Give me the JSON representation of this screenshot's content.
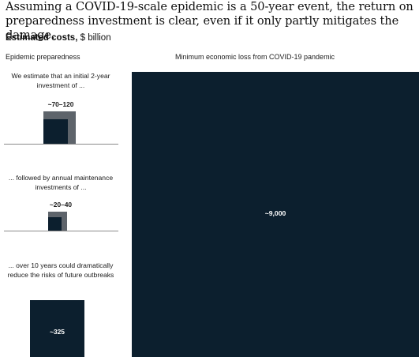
{
  "title": "Assuming a COVID-19-scale epidemic is a 50-year event, the return on preparedness investment is clear, even if it only partly mitigates the damage.",
  "subtitle": {
    "bold": "Estimated costs,",
    "light": " $ billion"
  },
  "panels": {
    "left_heading": "Epidemic preparedness",
    "right_heading": "Minimum economic loss from COVID-19 pandemic"
  },
  "steps": [
    {
      "text": "We estimate that an initial 2-year investment of ...",
      "value_label": "~70–120"
    },
    {
      "text": "... followed by annual maintenance investments of ...",
      "value_label": "~20–40"
    },
    {
      "text": "... over 10 years could dramatically reduce the risks of future outbreaks",
      "value_label": "~325"
    }
  ],
  "big": {
    "value_label": "~9,000"
  },
  "colors": {
    "navy": "#0c1f2e",
    "gray": "#5e646b",
    "rule": "#8a8a8a"
  },
  "chart_data": {
    "type": "proportional-area-squares",
    "unit": "$ billion",
    "items": [
      {
        "label": "Initial 2-year investment",
        "low": 70,
        "high": 120,
        "display": "~70–120"
      },
      {
        "label": "Annual maintenance investments",
        "low": 20,
        "high": 40,
        "display": "~20–40"
      },
      {
        "label": "Total over 10 years",
        "value": 325,
        "display": "~325"
      },
      {
        "label": "Minimum economic loss from COVID-19 pandemic",
        "value": 9000,
        "display": "~9,000"
      }
    ]
  }
}
